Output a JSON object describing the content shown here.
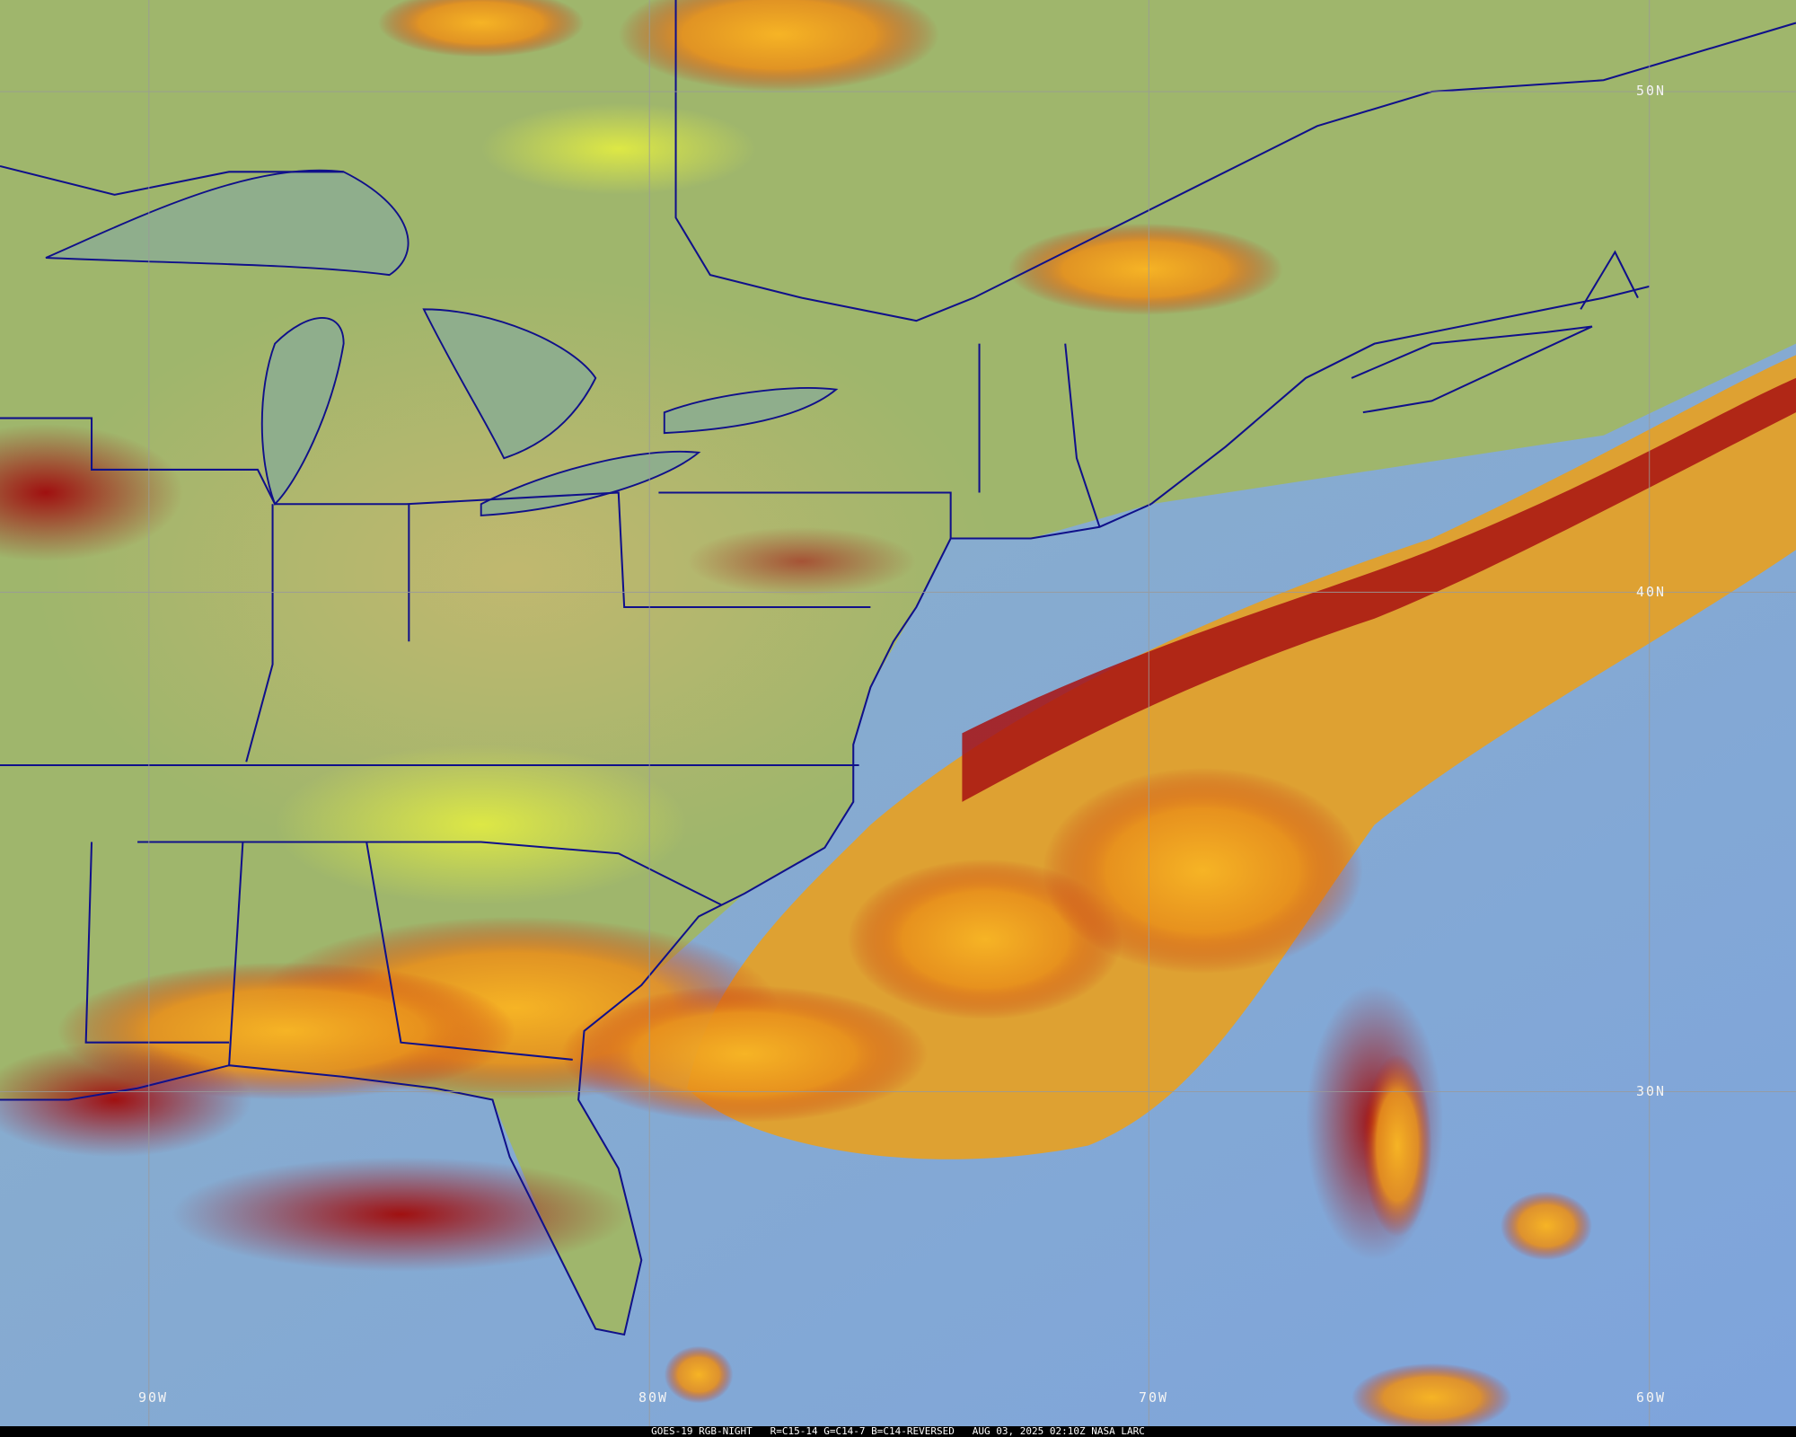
{
  "map": {
    "product": "GOES-19 RGB-NIGHT",
    "channels": "R=C15-14 G=C14-7 B=C14-REVERSED",
    "timestamp": "AUG 03, 2025 02:10Z",
    "credit": "NASA LARC",
    "lat_labels": [
      "50N",
      "40N",
      "30N"
    ],
    "lon_labels": [
      "90W",
      "80W",
      "70W",
      "60W"
    ],
    "colors": {
      "land": "#a9b56a",
      "ocean": "#7fa6d8",
      "cloud_high": "#f0a020",
      "cloud_core": "#b01010",
      "low_cloud": "#d8e040",
      "borders": "#10108a",
      "grid": "#9a9a9a"
    }
  }
}
